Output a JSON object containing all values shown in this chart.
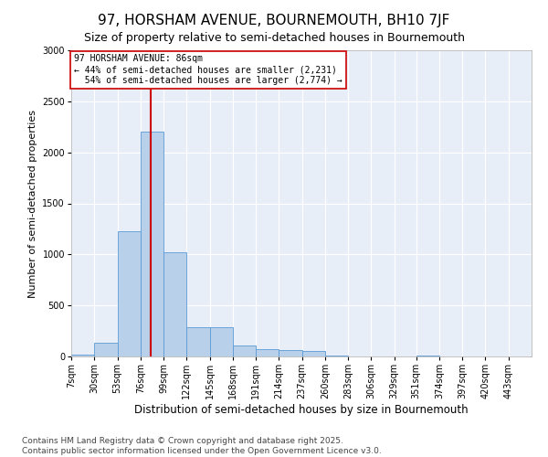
{
  "title": "97, HORSHAM AVENUE, BOURNEMOUTH, BH10 7JF",
  "subtitle": "Size of property relative to semi-detached houses in Bournemouth",
  "xlabel": "Distribution of semi-detached houses by size in Bournemouth",
  "ylabel": "Number of semi-detached properties",
  "footnote": "Contains HM Land Registry data © Crown copyright and database right 2025.\nContains public sector information licensed under the Open Government Licence v3.0.",
  "property_label": "97 HORSHAM AVENUE: 86sqm",
  "smaller_pct": "44% of semi-detached houses are smaller (2,231)",
  "larger_pct": "54% of semi-detached houses are larger (2,774)",
  "property_value": 86,
  "bar_color": "#b8d0ea",
  "bar_edge_color": "#5b9bd5",
  "vline_color": "#cc0000",
  "annotation_box_color": "#cc0000",
  "background_color": "#e8eef8",
  "bins": [
    7,
    30,
    53,
    76,
    99,
    122,
    145,
    168,
    191,
    214,
    237,
    260,
    283,
    306,
    329,
    351,
    374,
    397,
    420,
    443,
    466
  ],
  "counts": [
    15,
    130,
    1230,
    2200,
    1020,
    290,
    290,
    110,
    75,
    65,
    50,
    5,
    0,
    0,
    0,
    5,
    0,
    0,
    0,
    0
  ],
  "ylim": [
    0,
    3000
  ],
  "yticks": [
    0,
    500,
    1000,
    1500,
    2000,
    2500,
    3000
  ],
  "title_fontsize": 11,
  "subtitle_fontsize": 9,
  "ylabel_fontsize": 8,
  "xlabel_fontsize": 8.5,
  "tick_fontsize": 7,
  "annotation_fontsize": 7,
  "footnote_fontsize": 6.5
}
